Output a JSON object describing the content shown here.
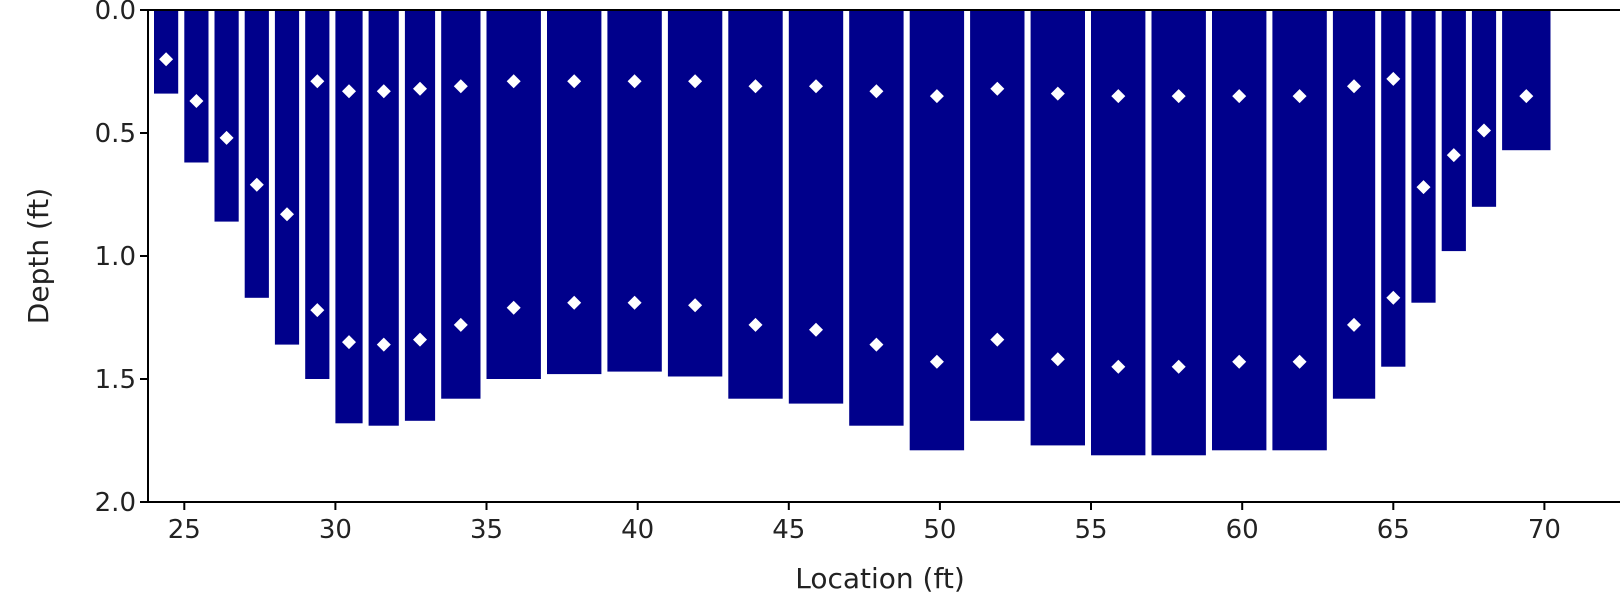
{
  "chart_data": {
    "type": "bar",
    "title": "",
    "xlabel": "Location (ft)",
    "ylabel": "Depth (ft)",
    "xlim": [
      23.8,
      72.5
    ],
    "ylim": [
      0,
      2.0
    ],
    "y_inverted": true,
    "x_ticks": [
      25,
      30,
      35,
      40,
      45,
      50,
      55,
      60,
      65,
      70
    ],
    "y_ticks": [
      "0.0",
      "0.5",
      "1.0",
      "1.5",
      "2.0"
    ],
    "y_tick_values": [
      0,
      0.5,
      1.0,
      1.5,
      2.0
    ],
    "grid": false,
    "bar_color": "#00008b",
    "marker_color": "#ffffff",
    "bars": [
      {
        "x0": 24.0,
        "x1": 24.8,
        "depth": 0.34,
        "points": [
          0.2
        ]
      },
      {
        "x0": 25.0,
        "x1": 25.8,
        "depth": 0.62,
        "points": [
          0.37
        ]
      },
      {
        "x0": 26.0,
        "x1": 26.8,
        "depth": 0.86,
        "points": [
          0.52
        ]
      },
      {
        "x0": 27.0,
        "x1": 27.8,
        "depth": 1.17,
        "points": [
          0.71
        ]
      },
      {
        "x0": 28.0,
        "x1": 28.8,
        "depth": 1.36,
        "points": [
          0.83
        ]
      },
      {
        "x0": 29.0,
        "x1": 29.8,
        "depth": 1.5,
        "points": [
          0.29,
          1.22
        ]
      },
      {
        "x0": 30.0,
        "x1": 30.9,
        "depth": 1.68,
        "points": [
          0.33,
          1.35
        ]
      },
      {
        "x0": 31.1,
        "x1": 32.1,
        "depth": 1.69,
        "points": [
          0.33,
          1.36
        ]
      },
      {
        "x0": 32.3,
        "x1": 33.3,
        "depth": 1.67,
        "points": [
          0.32,
          1.34
        ]
      },
      {
        "x0": 33.5,
        "x1": 34.8,
        "depth": 1.58,
        "points": [
          0.31,
          1.28
        ]
      },
      {
        "x0": 35.0,
        "x1": 36.8,
        "depth": 1.5,
        "points": [
          0.29,
          1.21
        ]
      },
      {
        "x0": 37.0,
        "x1": 38.8,
        "depth": 1.48,
        "points": [
          0.29,
          1.19
        ]
      },
      {
        "x0": 39.0,
        "x1": 40.8,
        "depth": 1.47,
        "points": [
          0.29,
          1.19
        ]
      },
      {
        "x0": 41.0,
        "x1": 42.8,
        "depth": 1.49,
        "points": [
          0.29,
          1.2
        ]
      },
      {
        "x0": 43.0,
        "x1": 44.8,
        "depth": 1.58,
        "points": [
          0.31,
          1.28
        ]
      },
      {
        "x0": 45.0,
        "x1": 46.8,
        "depth": 1.6,
        "points": [
          0.31,
          1.3
        ]
      },
      {
        "x0": 47.0,
        "x1": 48.8,
        "depth": 1.69,
        "points": [
          0.33,
          1.36
        ]
      },
      {
        "x0": 49.0,
        "x1": 50.8,
        "depth": 1.79,
        "points": [
          0.35,
          1.43
        ]
      },
      {
        "x0": 51.0,
        "x1": 52.8,
        "depth": 1.67,
        "points": [
          0.32,
          1.34
        ]
      },
      {
        "x0": 53.0,
        "x1": 54.8,
        "depth": 1.77,
        "points": [
          0.34,
          1.42
        ]
      },
      {
        "x0": 55.0,
        "x1": 56.8,
        "depth": 1.81,
        "points": [
          0.35,
          1.45
        ]
      },
      {
        "x0": 57.0,
        "x1": 58.8,
        "depth": 1.81,
        "points": [
          0.35,
          1.45
        ]
      },
      {
        "x0": 59.0,
        "x1": 60.8,
        "depth": 1.79,
        "points": [
          0.35,
          1.43
        ]
      },
      {
        "x0": 61.0,
        "x1": 62.8,
        "depth": 1.79,
        "points": [
          0.35,
          1.43
        ]
      },
      {
        "x0": 63.0,
        "x1": 64.4,
        "depth": 1.58,
        "points": [
          0.31,
          1.28
        ]
      },
      {
        "x0": 64.6,
        "x1": 65.4,
        "depth": 1.45,
        "points": [
          0.28,
          1.17
        ]
      },
      {
        "x0": 65.6,
        "x1": 66.4,
        "depth": 1.19,
        "points": [
          0.72
        ]
      },
      {
        "x0": 66.6,
        "x1": 67.4,
        "depth": 0.98,
        "points": [
          0.59
        ]
      },
      {
        "x0": 67.6,
        "x1": 68.4,
        "depth": 0.8,
        "points": [
          0.49
        ]
      },
      {
        "x0": 68.6,
        "x1": 70.2,
        "depth": 0.57,
        "points": [
          0.35
        ]
      }
    ]
  }
}
